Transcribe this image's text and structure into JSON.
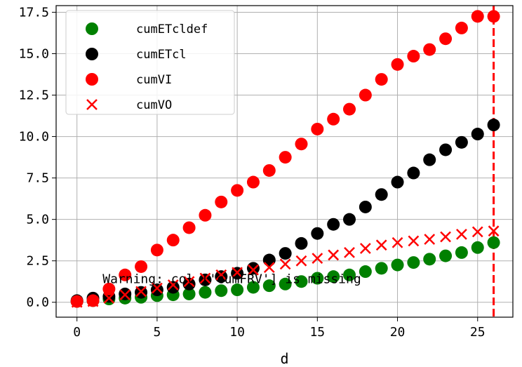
{
  "chart_data": {
    "type": "scatter",
    "xlabel": "d",
    "ylabel": "",
    "xlim": [
      -1.3,
      27.2
    ],
    "ylim": [
      -0.9,
      17.9
    ],
    "xticks": [
      0,
      5,
      10,
      15,
      20,
      25
    ],
    "yticks": [
      0.0,
      2.5,
      5.0,
      7.5,
      10.0,
      12.5,
      15.0,
      17.5
    ],
    "ytick_labels": [
      "0.0",
      "2.5",
      "5.0",
      "7.5",
      "10.0",
      "12.5",
      "15.0",
      "17.5"
    ],
    "grid": true,
    "legend_position": "top-left",
    "x": [
      0,
      1,
      2,
      3,
      4,
      5,
      6,
      7,
      8,
      9,
      10,
      11,
      12,
      13,
      14,
      15,
      16,
      17,
      18,
      19,
      20,
      21,
      22,
      23,
      24,
      25,
      26
    ],
    "series": [
      {
        "name": "cumETcldef",
        "marker": "circle",
        "color": "#008000",
        "values": [
          0.05,
          0.1,
          0.2,
          0.25,
          0.3,
          0.4,
          0.45,
          0.5,
          0.6,
          0.7,
          0.75,
          0.9,
          1.0,
          1.1,
          1.25,
          1.45,
          1.55,
          1.65,
          1.85,
          2.05,
          2.25,
          2.4,
          2.6,
          2.8,
          3.0,
          3.3,
          3.6
        ]
      },
      {
        "name": "cumETcl",
        "marker": "circle",
        "color": "#000000",
        "values": [
          0.1,
          0.25,
          0.35,
          0.5,
          0.6,
          0.75,
          0.9,
          1.1,
          1.35,
          1.55,
          1.75,
          2.05,
          2.55,
          2.95,
          3.55,
          4.15,
          4.7,
          5.0,
          5.75,
          6.5,
          7.25,
          7.8,
          8.6,
          9.2,
          9.65,
          10.15,
          10.7
        ]
      },
      {
        "name": "cumVI",
        "marker": "circle",
        "color": "#ff0000",
        "values": [
          0.05,
          0.1,
          0.8,
          1.65,
          2.15,
          3.15,
          3.75,
          4.5,
          5.25,
          6.05,
          6.75,
          7.25,
          7.95,
          8.75,
          9.55,
          10.45,
          11.05,
          11.65,
          12.5,
          13.45,
          14.35,
          14.85,
          15.25,
          15.9,
          16.55,
          17.25,
          17.25
        ]
      },
      {
        "name": "cumVO",
        "marker": "x",
        "color": "#ff0000",
        "values": [
          0.0,
          0.05,
          0.25,
          0.45,
          0.65,
          0.85,
          1.05,
          1.25,
          1.45,
          1.65,
          1.8,
          1.95,
          2.1,
          2.3,
          2.5,
          2.65,
          2.85,
          3.0,
          3.25,
          3.45,
          3.6,
          3.7,
          3.8,
          3.95,
          4.1,
          4.25,
          4.3
        ]
      }
    ],
    "vline": {
      "x": 26,
      "color": "#ff0000",
      "style": "dashed"
    },
    "annotation": {
      "text": "Warning: col ['cumFRV'] is missing",
      "x": 1.6,
      "y": 1.15
    }
  }
}
